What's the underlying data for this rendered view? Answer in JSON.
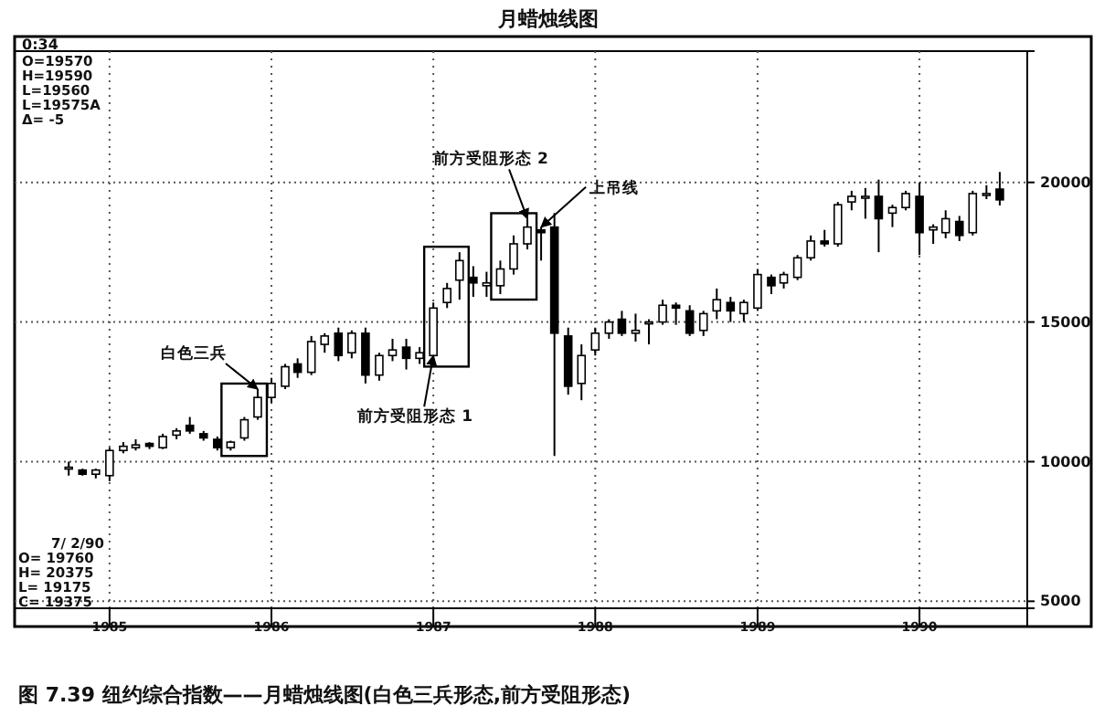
{
  "chart_data": {
    "type": "candlestick",
    "title": "月蜡烛线图",
    "x": [
      "1984-10",
      "1984-11",
      "1984-12",
      "1985-01",
      "1985-02",
      "1985-03",
      "1985-04",
      "1985-05",
      "1985-06",
      "1985-07",
      "1985-08",
      "1985-09",
      "1985-10",
      "1985-11",
      "1985-12",
      "1986-01",
      "1986-02",
      "1986-03",
      "1986-04",
      "1986-05",
      "1986-06",
      "1986-07",
      "1986-08",
      "1986-09",
      "1986-10",
      "1986-11",
      "1986-12",
      "1987-01",
      "1987-02",
      "1987-03",
      "1987-04",
      "1987-05",
      "1987-06",
      "1987-07",
      "1987-08",
      "1987-09",
      "1987-10",
      "1987-11",
      "1987-12",
      "1988-01",
      "1988-02",
      "1988-03",
      "1988-04",
      "1988-05",
      "1988-06",
      "1988-07",
      "1988-08",
      "1988-09",
      "1988-10",
      "1988-11",
      "1988-12",
      "1989-01",
      "1989-02",
      "1989-03",
      "1989-04",
      "1989-05",
      "1989-06",
      "1989-07",
      "1989-08",
      "1989-09",
      "1989-10",
      "1989-11",
      "1989-12",
      "1990-01",
      "1990-02",
      "1990-03",
      "1990-04",
      "1990-05",
      "1990-06",
      "1990-07"
    ],
    "ohlc": [
      [
        9750,
        10000,
        9500,
        9800
      ],
      [
        9700,
        9750,
        9500,
        9550
      ],
      [
        9550,
        9750,
        9400,
        9700
      ],
      [
        9500,
        10500,
        9300,
        10400
      ],
      [
        10400,
        10700,
        10300,
        10550
      ],
      [
        10500,
        10800,
        10400,
        10600
      ],
      [
        10650,
        10700,
        10450,
        10550
      ],
      [
        10500,
        11000,
        10450,
        10900
      ],
      [
        10950,
        11200,
        10800,
        11100
      ],
      [
        11300,
        11600,
        11000,
        11100
      ],
      [
        11000,
        11100,
        10750,
        10850
      ],
      [
        10800,
        10900,
        10400,
        10500
      ],
      [
        10500,
        10750,
        10400,
        10700
      ],
      [
        10850,
        11600,
        10750,
        11500
      ],
      [
        11600,
        12600,
        11500,
        12300
      ],
      [
        12300,
        13000,
        12100,
        12800
      ],
      [
        12700,
        13500,
        12600,
        13400
      ],
      [
        13500,
        13700,
        13000,
        13200
      ],
      [
        13200,
        14500,
        13100,
        14300
      ],
      [
        14200,
        14600,
        13900,
        14500
      ],
      [
        14600,
        14800,
        13600,
        13800
      ],
      [
        13900,
        14700,
        13700,
        14600
      ],
      [
        14600,
        14800,
        12800,
        13100
      ],
      [
        13100,
        13900,
        12900,
        13800
      ],
      [
        13800,
        14400,
        13600,
        14000
      ],
      [
        14100,
        14400,
        13300,
        13700
      ],
      [
        13700,
        14100,
        13500,
        13900
      ],
      [
        13800,
        15700,
        13600,
        15500
      ],
      [
        15700,
        16400,
        15500,
        16200
      ],
      [
        16500,
        17500,
        15800,
        17200
      ],
      [
        16600,
        17000,
        15900,
        16400
      ],
      [
        16300,
        16800,
        15900,
        16400
      ],
      [
        16300,
        17200,
        16000,
        16900
      ],
      [
        16900,
        18100,
        16700,
        17800
      ],
      [
        17800,
        18700,
        17600,
        18400
      ],
      [
        18300,
        18400,
        17200,
        18200
      ],
      [
        18400,
        18900,
        10200,
        14600
      ],
      [
        14500,
        14800,
        12400,
        12700
      ],
      [
        12800,
        14200,
        12200,
        13800
      ],
      [
        14000,
        14800,
        13800,
        14600
      ],
      [
        14600,
        15100,
        14400,
        15000
      ],
      [
        15100,
        15400,
        14500,
        14600
      ],
      [
        14600,
        15300,
        14300,
        14700
      ],
      [
        15000,
        15100,
        14200,
        15000
      ],
      [
        15000,
        15800,
        14900,
        15600
      ],
      [
        15600,
        15700,
        14900,
        15500
      ],
      [
        15400,
        15600,
        14500,
        14600
      ],
      [
        14700,
        15400,
        14500,
        15300
      ],
      [
        15400,
        16200,
        15100,
        15800
      ],
      [
        15700,
        15900,
        15000,
        15400
      ],
      [
        15300,
        15800,
        15000,
        15700
      ],
      [
        15500,
        16900,
        15400,
        16700
      ],
      [
        16600,
        16700,
        16000,
        16300
      ],
      [
        16400,
        16800,
        16200,
        16700
      ],
      [
        16600,
        17400,
        16500,
        17300
      ],
      [
        17300,
        18100,
        17200,
        17900
      ],
      [
        17900,
        18300,
        17700,
        17800
      ],
      [
        17800,
        19300,
        17700,
        19200
      ],
      [
        19300,
        19700,
        19000,
        19500
      ],
      [
        19500,
        19800,
        18700,
        19500
      ],
      [
        19500,
        20100,
        17500,
        18700
      ],
      [
        18900,
        19200,
        18400,
        19100
      ],
      [
        19100,
        19700,
        19000,
        19600
      ],
      [
        19500,
        20000,
        17400,
        18200
      ],
      [
        18300,
        18500,
        17800,
        18400
      ],
      [
        18200,
        19000,
        18000,
        18700
      ],
      [
        18600,
        18800,
        17900,
        18100
      ],
      [
        18200,
        19700,
        18100,
        19600
      ],
      [
        19600,
        19900,
        19400,
        19600
      ],
      [
        19760,
        20375,
        19175,
        19375
      ]
    ],
    "xlim": [
      "1984-06",
      "1990-09"
    ],
    "xticks": [
      "1985",
      "1986",
      "1987",
      "1988",
      "1989",
      "1990"
    ],
    "ylim": [
      4750,
      24700
    ],
    "yticks": [
      5000,
      10000,
      15000,
      20000
    ],
    "grid": true,
    "annotations": [
      "0:34",
      "O=19570",
      "H=19590",
      "L=19560",
      "L=19575A",
      "Δ=    -5",
      "7/ 2/90",
      "O= 19760",
      "H= 20375",
      "L= 19175",
      "C= 19375",
      {
        "text": "白色三兵",
        "x": "1985-12",
        "y": 12600
      },
      {
        "text": "前方受阻形态 1",
        "x": "1987-01",
        "y": 13800
      },
      {
        "text": "前方受阻形态 2",
        "x": "1987-08",
        "y": 18700
      },
      {
        "text": "上吊线",
        "x": "1987-09",
        "y": 18400
      },
      "图 7.39   纽约综合指数——月蜡烛线图(白色三兵形态,前方受阻形态)"
    ]
  }
}
